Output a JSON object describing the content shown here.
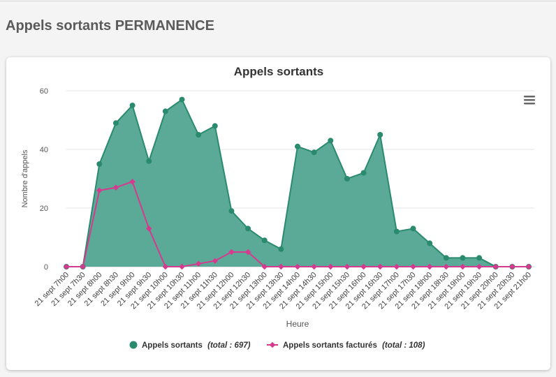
{
  "page": {
    "title": "Appels sortants PERMANENCE"
  },
  "colors": {
    "series1": "#2a8a6e",
    "series1_fill": "#5aaa97",
    "series2": "#d63a8f"
  },
  "icons": {
    "menu": "hamburger-menu-icon"
  },
  "chart_data": {
    "type": "area",
    "title": "Appels sortants",
    "xlabel": "Heure",
    "ylabel": "Nombre d'appels",
    "ylim": [
      0,
      60
    ],
    "yticks": [
      "0",
      "20",
      "40",
      "60"
    ],
    "grid": true,
    "legend_position": "bottom",
    "categories": [
      "21 sept 7h00",
      "21 sept 7h30",
      "21 sept 8h00",
      "21 sept 8h30",
      "21 sept 9h00",
      "21 sept 9h30",
      "21 sept 10h00",
      "21 sept 10h30",
      "21 sept 11h00",
      "21 sept 11h30",
      "21 sept 12h00",
      "21 sept 12h30",
      "21 sept 13h00",
      "21 sept 13h30",
      "21 sept 14h00",
      "21 sept 14h30",
      "21 sept 15h00",
      "21 sept 15h30",
      "21 sept 16h00",
      "21 sept 16h30",
      "21 sept 17h00",
      "21 sept 17h30",
      "21 sept 18h00",
      "21 sept 18h30",
      "21 sept 19h00",
      "21 sept 19h30",
      "21 sept 20h00",
      "21 sept 20h30",
      "21 sept 21h00"
    ],
    "series": [
      {
        "name": "Appels sortants",
        "total_label": "(total : 697)",
        "type": "area",
        "values": [
          0,
          0,
          35,
          49,
          55,
          36,
          53,
          57,
          45,
          48,
          19,
          13,
          9,
          6,
          41,
          39,
          43,
          30,
          32,
          45,
          12,
          13,
          8,
          3,
          3,
          3,
          0,
          0,
          0
        ]
      },
      {
        "name": "Appels sortants facturés",
        "total_label": "(total : 108)",
        "type": "line",
        "values": [
          0,
          0,
          26,
          27,
          29,
          13,
          0,
          0,
          1,
          2,
          5,
          5,
          0,
          0,
          0,
          0,
          0,
          0,
          0,
          0,
          0,
          0,
          0,
          0,
          0,
          0,
          0,
          0,
          0
        ]
      }
    ]
  }
}
